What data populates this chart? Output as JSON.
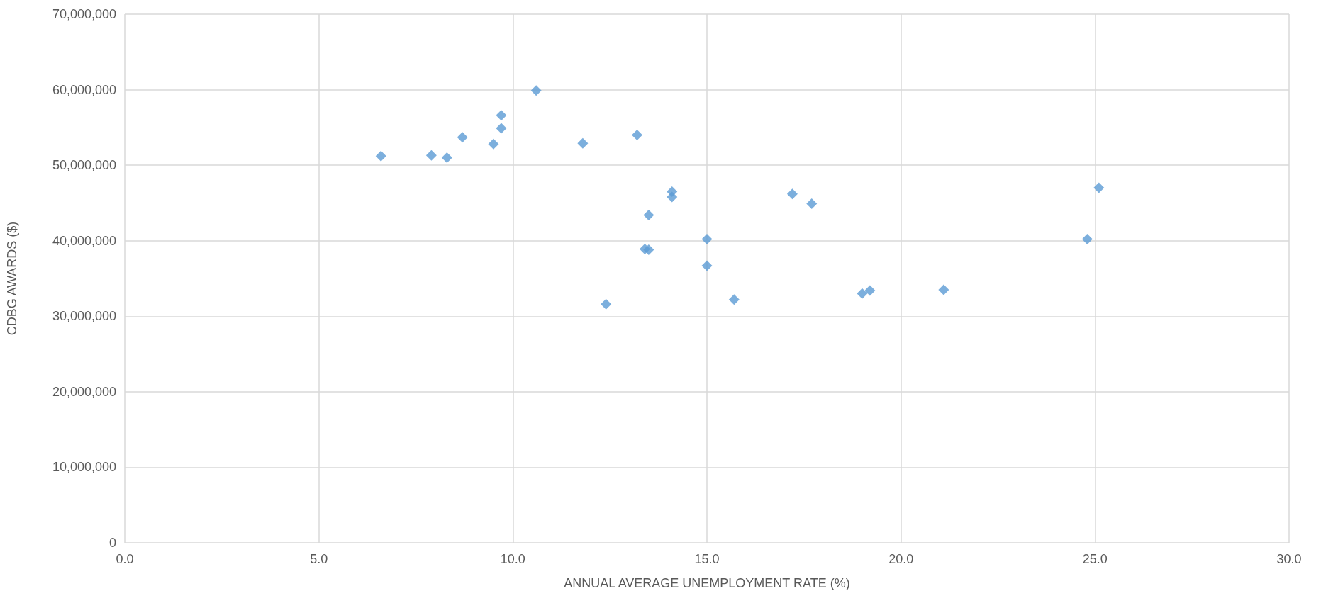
{
  "chart_data": {
    "type": "scatter",
    "xlabel": "ANNUAL AVERAGE UNEMPLOYMENT RATE (%)",
    "ylabel": "CDBG AWARDS ($)",
    "x": [
      6.6,
      7.9,
      8.3,
      8.7,
      9.5,
      9.7,
      9.7,
      10.6,
      11.8,
      13.2,
      12.4,
      13.4,
      13.5,
      13.5,
      14.1,
      14.1,
      15.0,
      15.0,
      15.7,
      17.2,
      17.7,
      19.0,
      19.2,
      21.1,
      24.8,
      25.1
    ],
    "series": [
      {
        "color": "#5b9bd5",
        "values": [
          51200000,
          51300000,
          51000000,
          53700000,
          52800000,
          56600000,
          54900000,
          59900000,
          52900000,
          54000000,
          31600000,
          38900000,
          38800000,
          43400000,
          46500000,
          45800000,
          40200000,
          36700000,
          32200000,
          46200000,
          44900000,
          33000000,
          33400000,
          33500000,
          40200000,
          47000000
        ]
      }
    ],
    "xlim": [
      0,
      30
    ],
    "xticks": [
      {
        "value": 0,
        "label": "0.0"
      },
      {
        "value": 5,
        "label": "5.0"
      },
      {
        "value": 10,
        "label": "10.0"
      },
      {
        "value": 15,
        "label": "15.0"
      },
      {
        "value": 20,
        "label": "20.0"
      },
      {
        "value": 25,
        "label": "25.0"
      },
      {
        "value": 30,
        "label": "30.0"
      }
    ],
    "ylim": [
      0,
      70000000
    ],
    "yticks": [
      0,
      {
        "value": 10000000,
        "label": "10,000,000"
      },
      {
        "value": 20000000,
        "label": "20,000,000"
      },
      {
        "value": 30000000,
        "label": "30,000,000"
      },
      {
        "value": 40000000,
        "label": "40,000,000"
      },
      {
        "value": 50000000,
        "label": "50,000,000"
      },
      {
        "value": 60000000,
        "label": "60,000,000"
      },
      {
        "value": 70000000,
        "label": "70,000,000"
      }
    ],
    "grid": true,
    "marker": "diamond"
  }
}
